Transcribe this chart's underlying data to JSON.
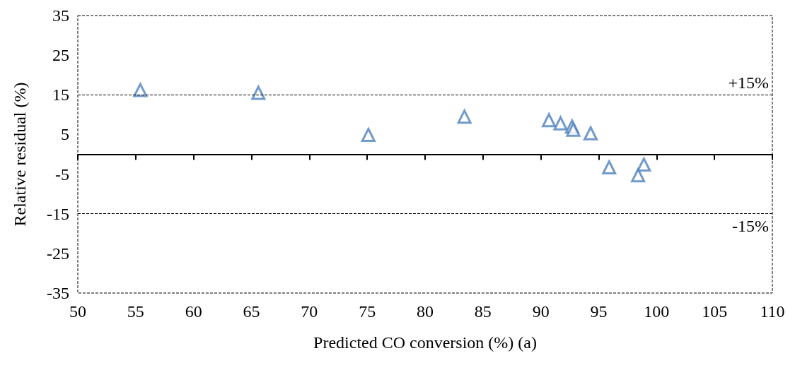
{
  "chart_data": {
    "type": "scatter",
    "xlabel": "Predicted CO conversion (%) (a)",
    "ylabel": "Relative residual (%)",
    "x": [
      55.4,
      65.6,
      75.1,
      83.4,
      90.7,
      91.7,
      92.7,
      92.8,
      94.3,
      95.9,
      98.4,
      98.9
    ],
    "series": [
      {
        "color": "#4f81bd",
        "values": [
          16.2,
          15.5,
          4.9,
          9.5,
          8.6,
          7.8,
          7.0,
          6.2,
          5.3,
          -3.3,
          -5.3,
          -2.6
        ]
      }
    ],
    "xlim": [
      50,
      110
    ],
    "xticks": [
      50,
      55,
      60,
      65,
      70,
      75,
      80,
      85,
      90,
      95,
      100,
      105,
      110
    ],
    "ylim": [
      -35,
      35
    ],
    "yticks": [
      -35,
      -25,
      -15,
      -5,
      5,
      15,
      25,
      35
    ],
    "ref_lines": [
      {
        "axis": "y",
        "value": 15,
        "label": "+15%",
        "line_style": "dashed",
        "color": "#000000"
      },
      {
        "axis": "y",
        "value": -15,
        "label": "-15%",
        "line_style": "dashed",
        "color": "#000000"
      }
    ],
    "marker": "triangle",
    "grid": false
  }
}
